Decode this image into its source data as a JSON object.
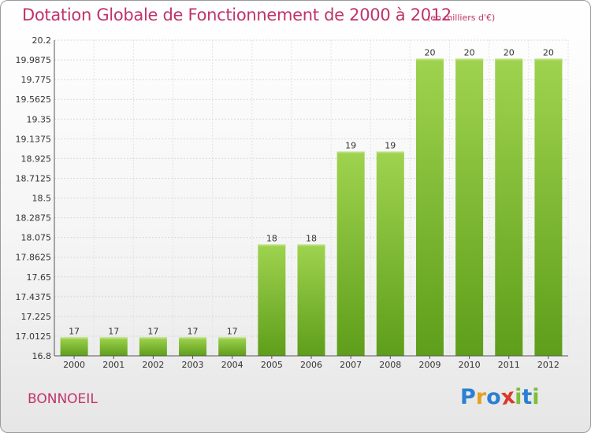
{
  "title": "Dotation Globale de Fonctionnement de 2000 à 2012",
  "subtitle": "(en milliers d'€)",
  "commune": "BONNOEIL",
  "logo": {
    "letters": [
      "P",
      "r",
      "o",
      "x",
      "i",
      "t",
      "i"
    ],
    "colors": [
      "#2b7fd4",
      "#e8a020",
      "#2b7fd4",
      "#d93a2b",
      "#7bbf3a",
      "#2b7fd4",
      "#7bbf3a"
    ]
  },
  "chart_data": {
    "type": "bar",
    "title": "Dotation Globale de Fonctionnement de 2000 à 2012",
    "subtitle": "(en milliers d'€)",
    "categories": [
      "2000",
      "2001",
      "2002",
      "2003",
      "2004",
      "2005",
      "2006",
      "2007",
      "2008",
      "2009",
      "2010",
      "2011",
      "2012"
    ],
    "values": [
      17,
      17,
      17,
      17,
      17,
      18,
      18,
      19,
      19,
      20,
      20,
      20,
      20
    ],
    "value_labels": [
      "17",
      "17",
      "17",
      "17",
      "17",
      "18",
      "18",
      "19",
      "19",
      "20",
      "20",
      "20",
      "20"
    ],
    "ylim": [
      16.8,
      20.2
    ],
    "yticks": [
      16.8,
      17.0125,
      17.225,
      17.4375,
      17.65,
      17.8625,
      18.075,
      18.2875,
      18.5,
      18.7125,
      18.925,
      19.1375,
      19.35,
      19.5625,
      19.775,
      19.9875,
      20.2
    ],
    "ytick_labels": [
      "16.8",
      "17.0125",
      "17.225",
      "17.4375",
      "17.65",
      "17.8625",
      "18.075",
      "18.2875",
      "18.5",
      "18.7125",
      "18.925",
      "19.1375",
      "19.35",
      "19.5625",
      "19.775",
      "19.9875",
      "20.2"
    ],
    "xlabel": "",
    "ylabel": "",
    "grid": true,
    "bar_color": "#7cb82f"
  }
}
